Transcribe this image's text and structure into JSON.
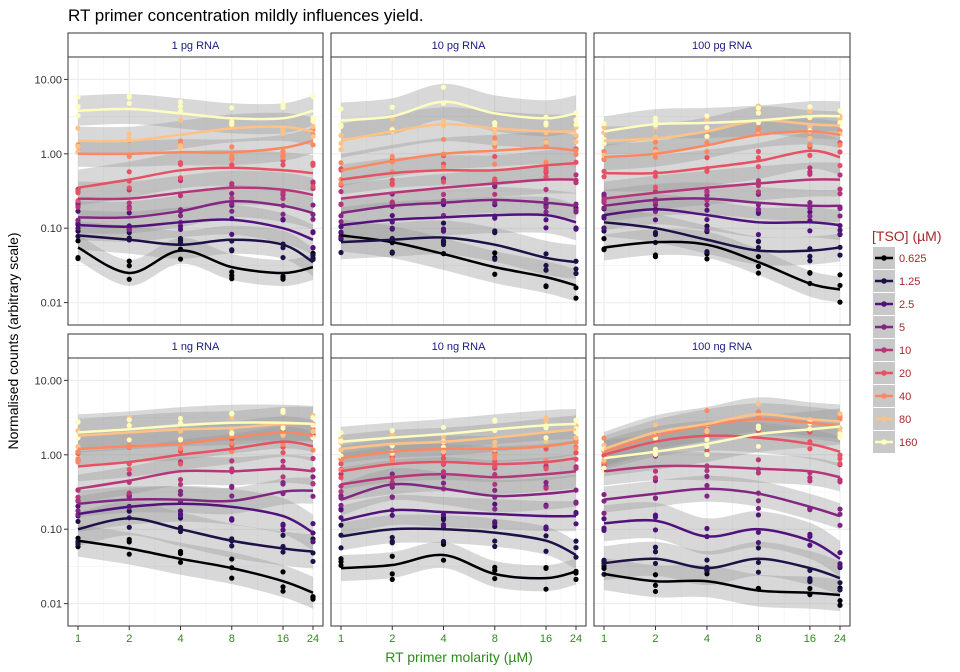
{
  "chart_data": {
    "type": "scatter",
    "title": "RT primer concentration mildly influences yield.",
    "xlabel": "RT primer molarity (µM)",
    "ylabel": "Normalised counts (arbitrary scale)",
    "x_scale": "log2",
    "y_scale": "log10",
    "x_ticks": [
      1,
      2,
      4,
      8,
      16,
      24
    ],
    "y_ticks": [
      0.01,
      0.1,
      1,
      10
    ],
    "y_tick_labels": [
      "0.01",
      "0.10",
      "1.00",
      "10.00"
    ],
    "ylim": [
      0.005,
      20
    ],
    "grid": true,
    "smoother": "loess with grey confidence band",
    "legend": {
      "title": "[TSO] (µM)",
      "placement": "right",
      "entries": [
        "0.625",
        "1.25",
        "2.5",
        "5",
        "10",
        "20",
        "40",
        "80",
        "160"
      ],
      "colors": [
        "#000004",
        "#1d1147",
        "#51127c",
        "#822681",
        "#b63679",
        "#e65164",
        "#fb8861",
        "#fec287",
        "#fcfdbf"
      ]
    },
    "facets": [
      {
        "label": "1 pg RNA",
        "series": [
          {
            "name": "0.625",
            "values": [
              0.055,
              0.025,
              0.05,
              0.03,
              0.025,
              0.03
            ]
          },
          {
            "name": "1.25",
            "values": [
              0.08,
              0.07,
              0.06,
              0.07,
              0.06,
              0.035
            ]
          },
          {
            "name": "2.5",
            "values": [
              0.11,
              0.105,
              0.12,
              0.13,
              0.1,
              0.07
            ]
          },
          {
            "name": "5",
            "values": [
              0.14,
              0.14,
              0.17,
              0.23,
              0.2,
              0.16
            ]
          },
          {
            "name": "10",
            "values": [
              0.25,
              0.25,
              0.3,
              0.35,
              0.33,
              0.28
            ]
          },
          {
            "name": "20",
            "values": [
              0.35,
              0.45,
              0.6,
              0.65,
              0.6,
              0.55
            ]
          },
          {
            "name": "40",
            "values": [
              1.0,
              1.0,
              1.05,
              1.05,
              1.2,
              1.5
            ]
          },
          {
            "name": "80",
            "values": [
              1.5,
              1.5,
              1.8,
              2.2,
              2.3,
              2.0
            ]
          },
          {
            "name": "160",
            "values": [
              3.8,
              4.0,
              3.5,
              3.0,
              3.0,
              3.8
            ]
          }
        ]
      },
      {
        "label": "10 pg RNA",
        "series": [
          {
            "name": "0.625",
            "values": [
              0.08,
              0.065,
              0.045,
              0.03,
              0.022,
              0.017
            ]
          },
          {
            "name": "1.25",
            "values": [
              0.065,
              0.07,
              0.075,
              0.06,
              0.04,
              0.035
            ]
          },
          {
            "name": "2.5",
            "values": [
              0.11,
              0.13,
              0.14,
              0.15,
              0.15,
              0.12
            ]
          },
          {
            "name": "5",
            "values": [
              0.16,
              0.2,
              0.22,
              0.24,
              0.22,
              0.2
            ]
          },
          {
            "name": "10",
            "values": [
              0.25,
              0.3,
              0.35,
              0.4,
              0.45,
              0.45
            ]
          },
          {
            "name": "20",
            "values": [
              0.45,
              0.55,
              0.6,
              0.6,
              0.7,
              0.75
            ]
          },
          {
            "name": "40",
            "values": [
              0.6,
              0.8,
              1.0,
              1.1,
              1.2,
              1.1
            ]
          },
          {
            "name": "80",
            "values": [
              1.5,
              2.0,
              2.5,
              2.2,
              2.0,
              2.0
            ]
          },
          {
            "name": "160",
            "values": [
              2.8,
              3.2,
              5.0,
              3.5,
              3.0,
              3.5
            ]
          }
        ]
      },
      {
        "label": "100 pg RNA",
        "series": [
          {
            "name": "0.625",
            "values": [
              0.055,
              0.065,
              0.06,
              0.035,
              0.018,
              0.015
            ]
          },
          {
            "name": "1.25",
            "values": [
              0.12,
              0.1,
              0.07,
              0.05,
              0.05,
              0.055
            ]
          },
          {
            "name": "2.5",
            "values": [
              0.15,
              0.18,
              0.15,
              0.12,
              0.12,
              0.11
            ]
          },
          {
            "name": "5",
            "values": [
              0.2,
              0.24,
              0.25,
              0.22,
              0.2,
              0.2
            ]
          },
          {
            "name": "10",
            "values": [
              0.25,
              0.3,
              0.35,
              0.4,
              0.45,
              0.45
            ]
          },
          {
            "name": "20",
            "values": [
              0.55,
              0.55,
              0.65,
              0.8,
              1.1,
              0.9
            ]
          },
          {
            "name": "40",
            "values": [
              0.9,
              1.0,
              1.3,
              1.8,
              2.0,
              1.8
            ]
          },
          {
            "name": "80",
            "values": [
              1.5,
              1.6,
              2.0,
              2.8,
              2.5,
              2.4
            ]
          },
          {
            "name": "160",
            "values": [
              2.0,
              2.5,
              2.6,
              2.8,
              3.2,
              3.2
            ]
          }
        ]
      },
      {
        "label": "1 ng RNA",
        "series": [
          {
            "name": "0.625",
            "values": [
              0.07,
              0.055,
              0.04,
              0.03,
              0.02,
              0.014
            ]
          },
          {
            "name": "1.25",
            "values": [
              0.1,
              0.14,
              0.1,
              0.07,
              0.055,
              0.05
            ]
          },
          {
            "name": "2.5",
            "values": [
              0.16,
              0.2,
              0.22,
              0.2,
              0.15,
              0.09
            ]
          },
          {
            "name": "5",
            "values": [
              0.22,
              0.25,
              0.25,
              0.24,
              0.32,
              0.33
            ]
          },
          {
            "name": "10",
            "values": [
              0.35,
              0.45,
              0.6,
              0.6,
              0.65,
              0.6
            ]
          },
          {
            "name": "20",
            "values": [
              0.7,
              0.8,
              1.0,
              1.2,
              1.5,
              1.3
            ]
          },
          {
            "name": "40",
            "values": [
              1.2,
              1.3,
              1.4,
              1.7,
              2.0,
              1.8
            ]
          },
          {
            "name": "80",
            "values": [
              1.8,
              2.0,
              2.2,
              2.3,
              2.6,
              2.6
            ]
          },
          {
            "name": "160",
            "values": [
              2.0,
              2.2,
              2.5,
              2.7,
              2.7,
              2.6
            ]
          }
        ]
      },
      {
        "label": "10 ng RNA",
        "series": [
          {
            "name": "0.625",
            "values": [
              0.03,
              0.033,
              0.045,
              0.025,
              0.022,
              0.027
            ]
          },
          {
            "name": "1.25",
            "values": [
              0.08,
              0.1,
              0.1,
              0.09,
              0.07,
              0.045
            ]
          },
          {
            "name": "2.5",
            "values": [
              0.13,
              0.18,
              0.17,
              0.16,
              0.15,
              0.15
            ]
          },
          {
            "name": "5",
            "values": [
              0.25,
              0.4,
              0.35,
              0.28,
              0.3,
              0.33
            ]
          },
          {
            "name": "10",
            "values": [
              0.4,
              0.5,
              0.55,
              0.5,
              0.55,
              0.6
            ]
          },
          {
            "name": "20",
            "values": [
              0.6,
              0.75,
              0.8,
              0.75,
              0.8,
              0.9
            ]
          },
          {
            "name": "40",
            "values": [
              0.9,
              1.1,
              1.2,
              1.2,
              1.3,
              1.5
            ]
          },
          {
            "name": "80",
            "values": [
              1.2,
              1.4,
              1.5,
              1.7,
              2.0,
              2.2
            ]
          },
          {
            "name": "160",
            "values": [
              1.5,
              1.7,
              1.9,
              2.2,
              2.5,
              2.6
            ]
          }
        ]
      },
      {
        "label": "100 ng RNA",
        "series": [
          {
            "name": "0.625",
            "values": [
              0.025,
              0.02,
              0.02,
              0.015,
              0.014,
              0.013
            ]
          },
          {
            "name": "1.25",
            "values": [
              0.035,
              0.04,
              0.03,
              0.04,
              0.03,
              0.022
            ]
          },
          {
            "name": "2.5",
            "values": [
              0.12,
              0.13,
              0.08,
              0.1,
              0.07,
              0.04
            ]
          },
          {
            "name": "5",
            "values": [
              0.25,
              0.3,
              0.35,
              0.3,
              0.2,
              0.15
            ]
          },
          {
            "name": "10",
            "values": [
              0.6,
              0.7,
              0.7,
              0.65,
              0.6,
              0.5
            ]
          },
          {
            "name": "20",
            "values": [
              1.0,
              1.5,
              1.8,
              1.7,
              1.4,
              1.1
            ]
          },
          {
            "name": "40",
            "values": [
              1.1,
              1.8,
              2.5,
              3.0,
              2.7,
              2.4
            ]
          },
          {
            "name": "80",
            "values": [
              1.2,
              2.0,
              2.6,
              3.5,
              3.0,
              2.8
            ]
          },
          {
            "name": "160",
            "values": [
              0.9,
              1.1,
              1.4,
              1.9,
              2.2,
              2.4
            ]
          }
        ]
      }
    ]
  }
}
